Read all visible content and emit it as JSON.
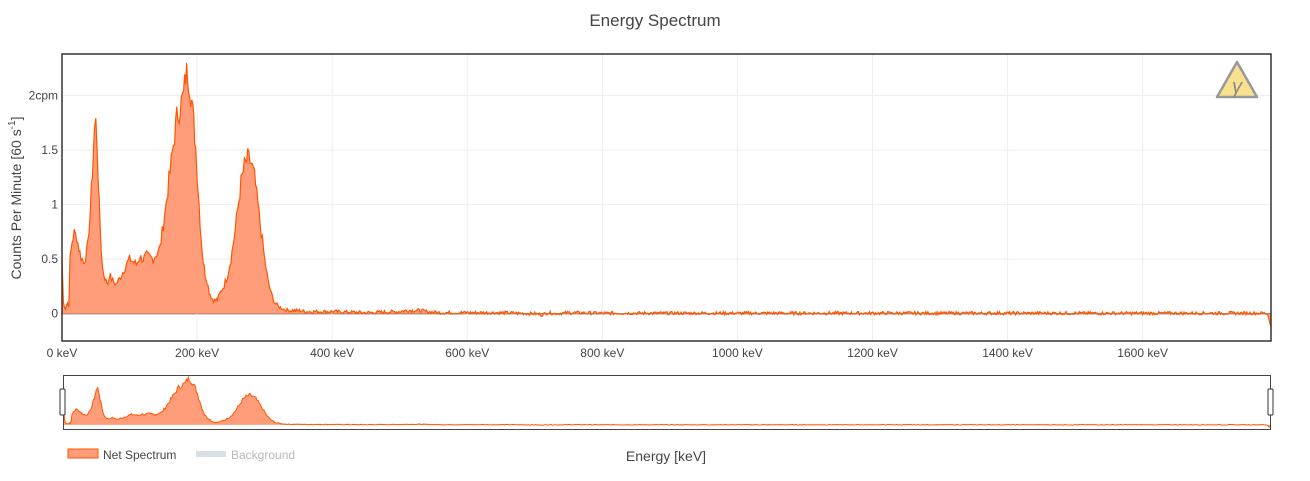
{
  "chart_data": {
    "type": "area",
    "title": "Energy Spectrum",
    "xlabel": "Energy [keV]",
    "ylabel_main": "Counts Per Minute [60 s",
    "ylabel_sup": "-1",
    "ylabel_end": "]",
    "xlim": [
      0,
      1790
    ],
    "ylim": [
      -0.25,
      2.38
    ],
    "x_ticks": [
      {
        "value": 0,
        "label": "0 keV"
      },
      {
        "value": 200,
        "label": "200 keV"
      },
      {
        "value": 400,
        "label": "400 keV"
      },
      {
        "value": 600,
        "label": "600 keV"
      },
      {
        "value": 800,
        "label": "800 keV"
      },
      {
        "value": 1000,
        "label": "1000 keV"
      },
      {
        "value": 1200,
        "label": "1200 keV"
      },
      {
        "value": 1400,
        "label": "1400 keV"
      },
      {
        "value": 1600,
        "label": "1600 keV"
      }
    ],
    "y_ticks": [
      {
        "value": 0,
        "label": "0"
      },
      {
        "value": 0.5,
        "label": "0.5"
      },
      {
        "value": 1,
        "label": "1"
      },
      {
        "value": 1.5,
        "label": "1.5"
      },
      {
        "value": 2,
        "label": "2cpm"
      }
    ],
    "grid": true,
    "legend_position": "bottom-left",
    "series": [
      {
        "name": "Net Spectrum",
        "color": "#ff5500",
        "fill": "#ff9d7a",
        "visible": true,
        "x": [
          0,
          2,
          5,
          8,
          10,
          12,
          15,
          18,
          20,
          22,
          25,
          28,
          30,
          32,
          35,
          38,
          40,
          42,
          45,
          48,
          50,
          52,
          55,
          58,
          60,
          62,
          65,
          68,
          70,
          75,
          80,
          85,
          90,
          95,
          100,
          105,
          110,
          115,
          120,
          125,
          130,
          135,
          140,
          145,
          150,
          155,
          160,
          165,
          170,
          175,
          180,
          183,
          186,
          189,
          192,
          195,
          198,
          200,
          203,
          206,
          209,
          212,
          215,
          218,
          222,
          226,
          230,
          235,
          240,
          245,
          250,
          255,
          260,
          265,
          270,
          275,
          280,
          285,
          290,
          295,
          300,
          305,
          310,
          315,
          320,
          325,
          330,
          335,
          340,
          350,
          360,
          370,
          380,
          400,
          450,
          500,
          510,
          520,
          530,
          540,
          560,
          600,
          650,
          700,
          710,
          720,
          730,
          750,
          800,
          900,
          1000,
          1100,
          1200,
          1300,
          1400,
          1500,
          1600,
          1700,
          1780,
          1785,
          1790
        ],
        "y": [
          0.5,
          0.1,
          0.05,
          0.1,
          0.08,
          0.5,
          0.66,
          0.74,
          0.72,
          0.7,
          0.6,
          0.52,
          0.5,
          0.46,
          0.52,
          0.62,
          0.78,
          0.96,
          1.3,
          1.68,
          1.75,
          1.55,
          1.0,
          0.6,
          0.42,
          0.36,
          0.3,
          0.28,
          0.36,
          0.3,
          0.27,
          0.32,
          0.38,
          0.45,
          0.5,
          0.48,
          0.45,
          0.52,
          0.5,
          0.53,
          0.52,
          0.5,
          0.55,
          0.6,
          0.82,
          1.05,
          1.3,
          1.55,
          1.8,
          1.9,
          2.0,
          2.18,
          2.22,
          2.1,
          1.95,
          1.75,
          1.52,
          1.3,
          1.0,
          0.7,
          0.48,
          0.36,
          0.3,
          0.2,
          0.14,
          0.12,
          0.13,
          0.2,
          0.26,
          0.35,
          0.5,
          0.7,
          0.95,
          1.2,
          1.35,
          1.42,
          1.38,
          1.25,
          1.0,
          0.75,
          0.5,
          0.3,
          0.18,
          0.1,
          0.07,
          0.05,
          0.04,
          0.03,
          0.03,
          0.03,
          0.02,
          0.02,
          0.02,
          0.02,
          0.01,
          0.02,
          0.03,
          0.03,
          0.03,
          0.02,
          0.01,
          0.01,
          0.01,
          0.0,
          -0.01,
          0.01,
          0.0,
          0.01,
          0.005,
          0.005,
          0.005,
          0.005,
          0.005,
          0.005,
          0.005,
          0.005,
          0.005,
          0.005,
          0.005,
          0.0,
          -0.12
        ]
      },
      {
        "name": "Background",
        "color": "#c9d2dd",
        "visible": false
      }
    ]
  },
  "icon": {
    "name": "gamma-warning-icon",
    "glyph": "γ"
  }
}
